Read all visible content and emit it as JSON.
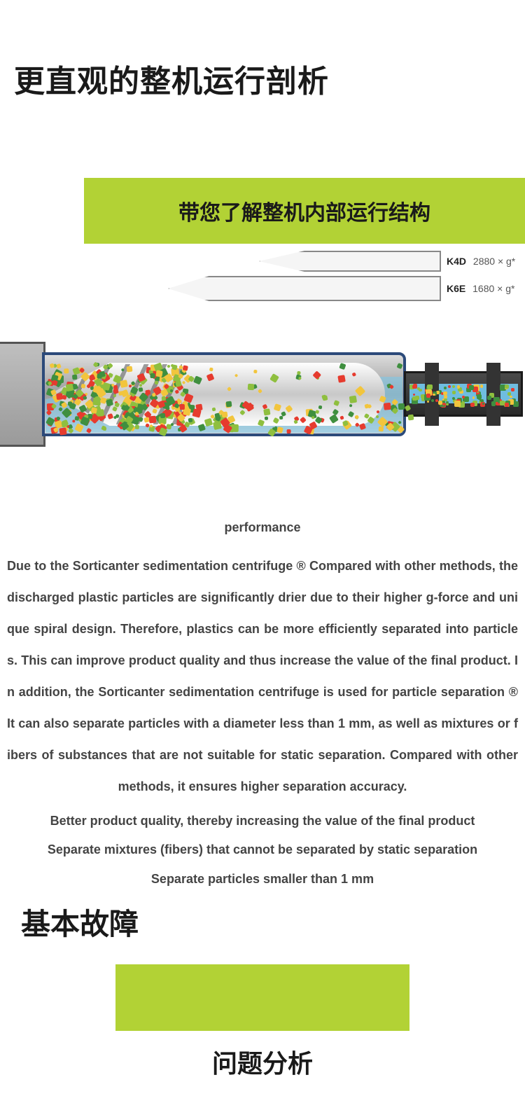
{
  "headings": {
    "main": "更直观的整机运行剖析",
    "banner1": "带您了解整机内部运行结构",
    "fault": "基本故障",
    "analysis": "问题分析"
  },
  "specs": [
    {
      "code": "K4D",
      "value": "2880 × g*",
      "shape": "short"
    },
    {
      "code": "K6E",
      "value": "1680 × g*",
      "shape": "long"
    }
  ],
  "diagram_colors": {
    "banner_bg": "#b2d235",
    "water": "#7fc8e8",
    "bowl_border": "#2c4a7a",
    "metal_light": "#dcdcdc",
    "metal_dark": "#9a9a9a",
    "particle_palette": [
      "#e63b2e",
      "#f2c53d",
      "#8fbf3f",
      "#3f8f3f"
    ]
  },
  "performance": {
    "title": "performance",
    "paragraph": "Due to the Sorticanter sedimentation centrifuge ®  Compared with other methods, the discharged plastic particles are significantly drier due to their higher g-force and unique spiral design. Therefore, plastics can be more efficiently separated into particles. This can improve product quality and thus increase the value of the final product. In addition, the Sorticanter sedimentation centrifuge is used for particle separation ®  It can also separate particles with a diameter less than 1 mm, as well as mixtures or fibers of substances that are not suitable for static separation. Compared with other methods, it ensures higher separation accuracy.",
    "bullets": [
      "Better product quality, thereby increasing the value of the final product",
      "Separate mixtures (fibers) that cannot be separated by static separation",
      "Separate particles smaller than 1 mm"
    ]
  }
}
